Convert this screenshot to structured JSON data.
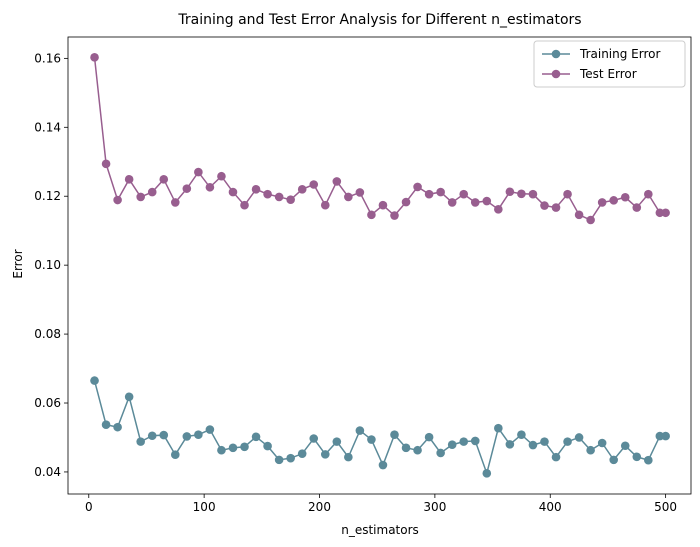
{
  "chart_data": {
    "type": "line",
    "title": "Training and Test Error Analysis for Different n_estimators",
    "xlabel": "n_estimators",
    "ylabel": "Error",
    "xlim": [
      -18,
      522
    ],
    "ylim": [
      0.0336,
      0.1662
    ],
    "xticks": [
      0,
      100,
      200,
      300,
      400,
      500
    ],
    "xtick_labels": [
      "0",
      "100",
      "200",
      "300",
      "400",
      "500"
    ],
    "yticks": [
      0.04,
      0.06,
      0.08,
      0.1,
      0.12,
      0.14,
      0.16
    ],
    "ytick_labels": [
      "0.04",
      "0.06",
      "0.08",
      "0.10",
      "0.12",
      "0.14",
      "0.16"
    ],
    "grid": false,
    "legend_position": "top-right",
    "marker": "circle",
    "x": [
      5,
      15,
      25,
      35,
      45,
      55,
      65,
      75,
      85,
      95,
      105,
      115,
      125,
      135,
      145,
      155,
      165,
      175,
      185,
      195,
      205,
      215,
      225,
      235,
      245,
      255,
      265,
      275,
      285,
      295,
      305,
      315,
      325,
      335,
      345,
      355,
      365,
      375,
      385,
      395,
      405,
      415,
      425,
      435,
      445,
      455,
      465,
      475,
      485,
      495,
      500
    ],
    "series": [
      {
        "name": "Training Error",
        "color": "#5b8a99",
        "values": [
          0.0665,
          0.0537,
          0.053,
          0.0618,
          0.0488,
          0.0505,
          0.0507,
          0.045,
          0.0503,
          0.0508,
          0.0523,
          0.0463,
          0.047,
          0.0473,
          0.0502,
          0.0475,
          0.0435,
          0.044,
          0.0453,
          0.0497,
          0.0451,
          0.0488,
          0.0443,
          0.052,
          0.0494,
          0.042,
          0.0508,
          0.047,
          0.0463,
          0.0501,
          0.0455,
          0.0479,
          0.0488,
          0.049,
          0.0396,
          0.0527,
          0.048,
          0.0508,
          0.0478,
          0.0488,
          0.0443,
          0.0488,
          0.05,
          0.0463,
          0.0484,
          0.0435,
          0.0476,
          0.0444,
          0.0434,
          0.0504,
          0.0504
        ]
      },
      {
        "name": "Test Error",
        "color": "#985e8f",
        "values": [
          0.1603,
          0.1294,
          0.1189,
          0.1249,
          0.1198,
          0.1212,
          0.1249,
          0.1182,
          0.1222,
          0.127,
          0.1226,
          0.1258,
          0.1212,
          0.1174,
          0.122,
          0.1206,
          0.1198,
          0.119,
          0.122,
          0.1234,
          0.1174,
          0.1243,
          0.1198,
          0.1211,
          0.1146,
          0.1174,
          0.1144,
          0.1183,
          0.1227,
          0.1206,
          0.1212,
          0.1182,
          0.1206,
          0.1182,
          0.1186,
          0.1162,
          0.1213,
          0.1207,
          0.1206,
          0.1173,
          0.1167,
          0.1206,
          0.1146,
          0.1131,
          0.1182,
          0.1188,
          0.1197,
          0.1167,
          0.1206,
          0.1152,
          0.1152
        ]
      }
    ]
  }
}
